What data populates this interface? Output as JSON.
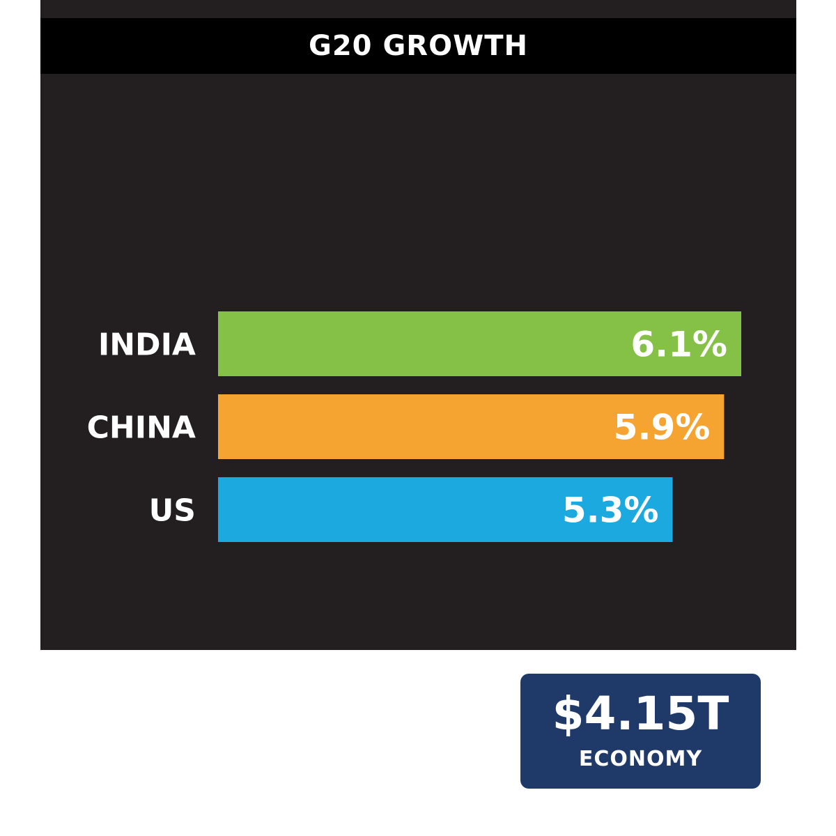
{
  "colors": {
    "panel": "#231f20",
    "title_bar": "#000000",
    "badge": "#1f3a68",
    "india": "#84c146",
    "china": "#f5a431",
    "us": "#1ba9df"
  },
  "chart_data": {
    "type": "bar",
    "orientation": "horizontal",
    "title": "G20 GROWTH",
    "categories": [
      "INDIA",
      "CHINA",
      "US"
    ],
    "values": [
      6.1,
      5.9,
      5.3
    ],
    "value_labels": [
      "6.1%",
      "5.9%",
      "5.3%"
    ],
    "bar_colors": [
      "#84c146",
      "#f5a431",
      "#1ba9df"
    ],
    "xlabel": "",
    "ylabel": "",
    "grid": false,
    "legend": "none"
  },
  "stat": {
    "value": "$4.15T",
    "caption": "ECONOMY"
  }
}
